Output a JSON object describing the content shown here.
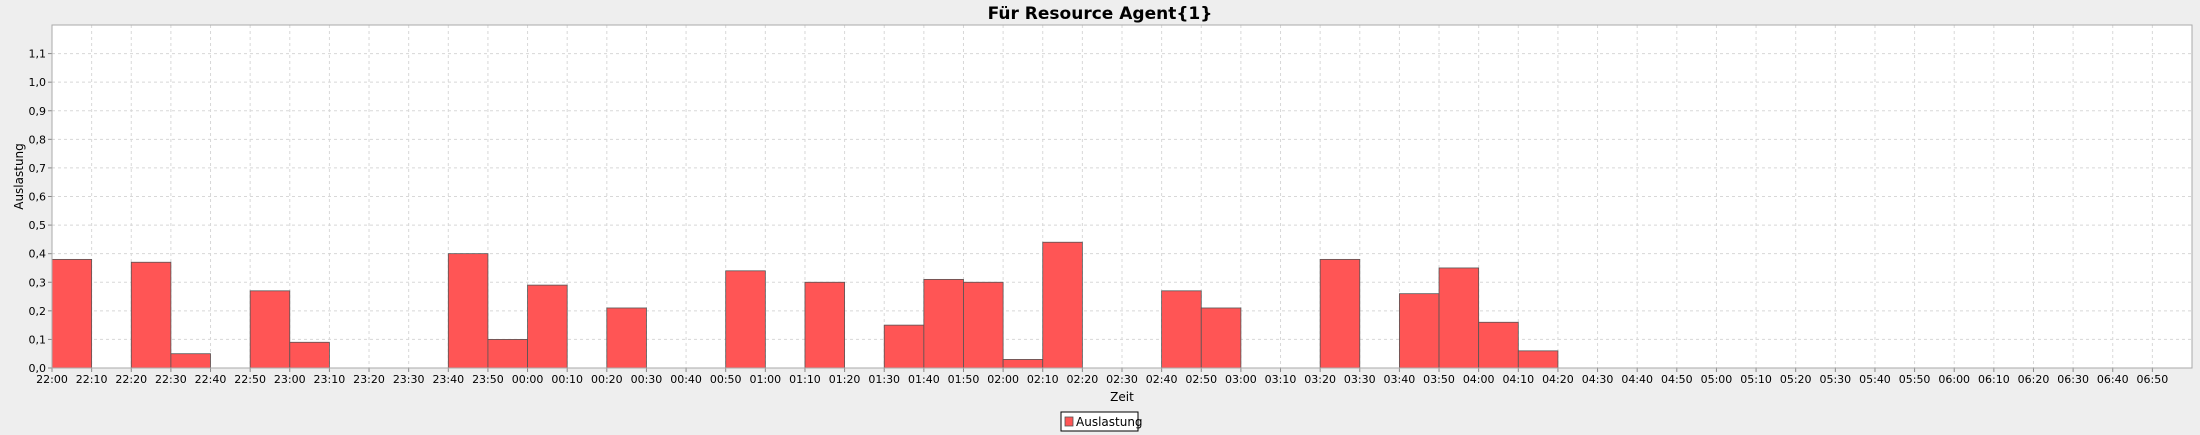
{
  "chart_data": {
    "type": "bar",
    "title": "Für Resource Agent{1}",
    "xlabel": "Zeit",
    "ylabel": "Auslastung",
    "ylim": [
      0,
      1.2
    ],
    "y_ticks": [
      "0,0",
      "0,1",
      "0,2",
      "0,3",
      "0,4",
      "0,5",
      "0,6",
      "0,7",
      "0,8",
      "0,9",
      "1,0",
      "1,1"
    ],
    "x_start": "22:00",
    "x_end": "07:00",
    "bin_minutes": 10,
    "x_ticks": [
      "22:00",
      "22:10",
      "22:20",
      "22:30",
      "22:40",
      "22:50",
      "23:00",
      "23:10",
      "23:20",
      "23:30",
      "23:40",
      "23:50",
      "00:00",
      "00:10",
      "00:20",
      "00:30",
      "00:40",
      "00:50",
      "01:00",
      "01:10",
      "01:20",
      "01:30",
      "01:40",
      "01:50",
      "02:00",
      "02:10",
      "02:20",
      "02:30",
      "02:40",
      "02:50",
      "03:00",
      "03:10",
      "03:20",
      "03:30",
      "03:40",
      "03:50",
      "04:00",
      "04:10",
      "04:20",
      "04:30",
      "04:40",
      "04:50",
      "05:00",
      "05:10",
      "05:20",
      "05:30",
      "05:40",
      "05:50",
      "06:00",
      "06:10",
      "06:20",
      "06:30",
      "06:40",
      "06:50"
    ],
    "bars": [
      {
        "start": "22:00",
        "value": 0.38
      },
      {
        "start": "22:20",
        "value": 0.37
      },
      {
        "start": "22:30",
        "value": 0.05
      },
      {
        "start": "22:50",
        "value": 0.27
      },
      {
        "start": "23:00",
        "value": 0.09
      },
      {
        "start": "23:40",
        "value": 0.4
      },
      {
        "start": "23:50",
        "value": 0.1
      },
      {
        "start": "00:00",
        "value": 0.29
      },
      {
        "start": "00:20",
        "value": 0.21
      },
      {
        "start": "00:50",
        "value": 0.34
      },
      {
        "start": "01:10",
        "value": 0.3
      },
      {
        "start": "01:30",
        "value": 0.15
      },
      {
        "start": "01:40",
        "value": 0.31
      },
      {
        "start": "01:50",
        "value": 0.3
      },
      {
        "start": "02:00",
        "value": 0.03
      },
      {
        "start": "02:10",
        "value": 0.44
      },
      {
        "start": "02:40",
        "value": 0.27
      },
      {
        "start": "02:50",
        "value": 0.21
      },
      {
        "start": "03:20",
        "value": 0.38
      },
      {
        "start": "03:40",
        "value": 0.26
      },
      {
        "start": "03:50",
        "value": 0.35
      },
      {
        "start": "04:00",
        "value": 0.16
      },
      {
        "start": "04:10",
        "value": 0.06
      }
    ],
    "legend": {
      "label": "Auslastung",
      "placement": "bottom-center"
    },
    "grid": true,
    "colors": {
      "bar": "#ff5555",
      "bar_border": "#555555",
      "background": "#ffffff",
      "page": "#eeeeee",
      "grid": "#d8d8d8"
    }
  }
}
